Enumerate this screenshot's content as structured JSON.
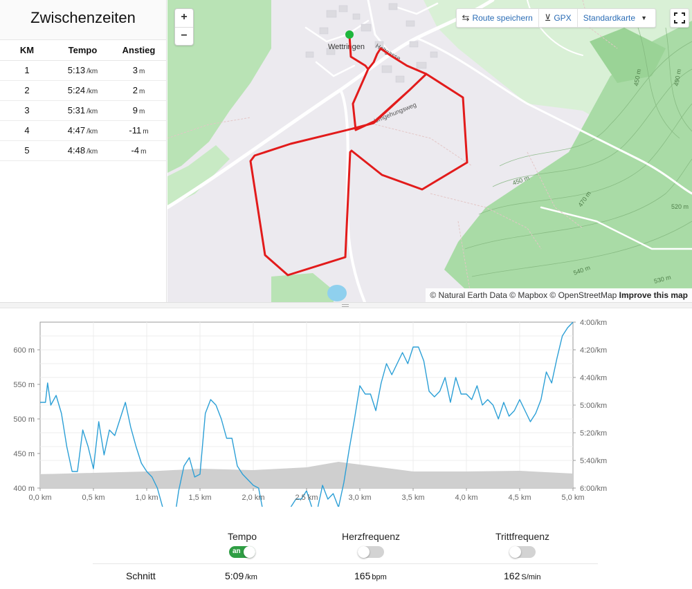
{
  "splits": {
    "title": "Zwischenzeiten",
    "headers": [
      "KM",
      "Tempo",
      "Anstieg"
    ],
    "rows": [
      {
        "km": "1",
        "tempo": "5:13",
        "tempo_unit": "/km",
        "anstieg": "3",
        "anstieg_unit": "m"
      },
      {
        "km": "2",
        "tempo": "5:24",
        "tempo_unit": "/km",
        "anstieg": "2",
        "anstieg_unit": "m"
      },
      {
        "km": "3",
        "tempo": "5:31",
        "tempo_unit": "/km",
        "anstieg": "9",
        "anstieg_unit": "m"
      },
      {
        "km": "4",
        "tempo": "4:47",
        "tempo_unit": "/km",
        "anstieg": "-11",
        "anstieg_unit": "m"
      },
      {
        "km": "5",
        "tempo": "4:48",
        "tempo_unit": "/km",
        "anstieg": "-4",
        "anstieg_unit": "m"
      }
    ]
  },
  "map": {
    "zoom_in": "+",
    "zoom_out": "−",
    "save_route": "Route speichern",
    "gpx": "GPX",
    "map_style": "Standardkarte",
    "place_label": "Wettringen",
    "street_labels": [
      "Holtgasse",
      "Umgehungsweg"
    ],
    "contour_labels": [
      "450 m",
      "490 m",
      "450 m",
      "470 m",
      "520 m",
      "540 m",
      "530 m"
    ],
    "attribution": "© Natural Earth Data © Mapbox © OpenStreetMap",
    "improve_link": "Improve this map",
    "route_color": "#e21b1b",
    "start_color": "#1eb63c"
  },
  "chart_data": {
    "type": "line",
    "x_ticks": [
      "0,0 km",
      "0,5 km",
      "1,0 km",
      "1,5 km",
      "2,0 km",
      "2,5 km",
      "3,0 km",
      "3,5 km",
      "4,0 km",
      "4,5 km",
      "5,0 km"
    ],
    "y_left_ticks": [
      "400 m",
      "450 m",
      "500 m",
      "550 m",
      "600 m"
    ],
    "y_right_ticks": [
      "4:00/km",
      "4:20/km",
      "4:40/km",
      "5:00/km",
      "5:20/km",
      "5:40/km",
      "6:00/km"
    ],
    "xlim": [
      0,
      5.0
    ],
    "ylim_left": [
      400,
      640
    ],
    "grid": true,
    "series": [
      {
        "axis": "right",
        "color": "#2b9fd6",
        "type": "line",
        "x": [
          0.0,
          0.05,
          0.07,
          0.1,
          0.15,
          0.2,
          0.25,
          0.3,
          0.35,
          0.4,
          0.45,
          0.5,
          0.55,
          0.6,
          0.65,
          0.7,
          0.75,
          0.8,
          0.85,
          0.9,
          0.95,
          1.0,
          1.05,
          1.1,
          1.15,
          1.2,
          1.25,
          1.3,
          1.35,
          1.4,
          1.45,
          1.5,
          1.55,
          1.6,
          1.65,
          1.7,
          1.75,
          1.8,
          1.85,
          1.9,
          1.95,
          2.0,
          2.05,
          2.1,
          2.15,
          2.2,
          2.25,
          2.3,
          2.35,
          2.4,
          2.45,
          2.5,
          2.55,
          2.6,
          2.65,
          2.7,
          2.75,
          2.8,
          2.85,
          2.9,
          2.95,
          3.0,
          3.05,
          3.1,
          3.15,
          3.2,
          3.25,
          3.3,
          3.35,
          3.4,
          3.45,
          3.5,
          3.55,
          3.6,
          3.65,
          3.7,
          3.75,
          3.8,
          3.85,
          3.9,
          3.95,
          4.0,
          4.05,
          4.1,
          4.15,
          4.2,
          4.25,
          4.3,
          4.35,
          4.4,
          4.45,
          4.5,
          4.55,
          4.6,
          4.65,
          4.7,
          4.75,
          4.8,
          4.85,
          4.9,
          4.95,
          5.0
        ],
        "pace_seconds_per_km": [
          298,
          298,
          284,
          300,
          293,
          306,
          330,
          348,
          348,
          318,
          330,
          346,
          312,
          336,
          318,
          322,
          310,
          298,
          316,
          330,
          342,
          348,
          352,
          360,
          374,
          384,
          388,
          362,
          344,
          338,
          352,
          350,
          306,
          296,
          300,
          310,
          324,
          324,
          344,
          350,
          354,
          358,
          360,
          380,
          394,
          398,
          382,
          384,
          374,
          368,
          368,
          362,
          374,
          376,
          358,
          368,
          364,
          374,
          356,
          332,
          310,
          286,
          292,
          292,
          304,
          284,
          270,
          278,
          270,
          262,
          270,
          258,
          258,
          268,
          290,
          294,
          290,
          280,
          298,
          280,
          292,
          292,
          296,
          286,
          300,
          296,
          300,
          310,
          298,
          308,
          304,
          296,
          304,
          312,
          306,
          296,
          276,
          284,
          266,
          250,
          244,
          240
        ]
      },
      {
        "axis": "left",
        "color": "#cfcfcf",
        "type": "area",
        "x": [
          0.0,
          0.5,
          1.0,
          1.5,
          2.0,
          2.5,
          2.8,
          3.0,
          3.5,
          4.0,
          4.5,
          5.0
        ],
        "elevation_m": [
          420,
          422,
          424,
          428,
          426,
          430,
          438,
          434,
          424,
          424,
          425,
          421
        ]
      }
    ]
  },
  "controls": {
    "tempo": {
      "label": "Tempo",
      "state": "an",
      "on": true
    },
    "herzfrequenz": {
      "label": "Herzfrequenz",
      "on": false
    },
    "trittfrequenz": {
      "label": "Trittfrequenz",
      "on": false
    }
  },
  "averages": {
    "label": "Schnitt",
    "tempo": "5:09",
    "tempo_unit": "/km",
    "herz": "165",
    "herz_unit": "bpm",
    "tritt": "162",
    "tritt_unit": "S/min"
  }
}
